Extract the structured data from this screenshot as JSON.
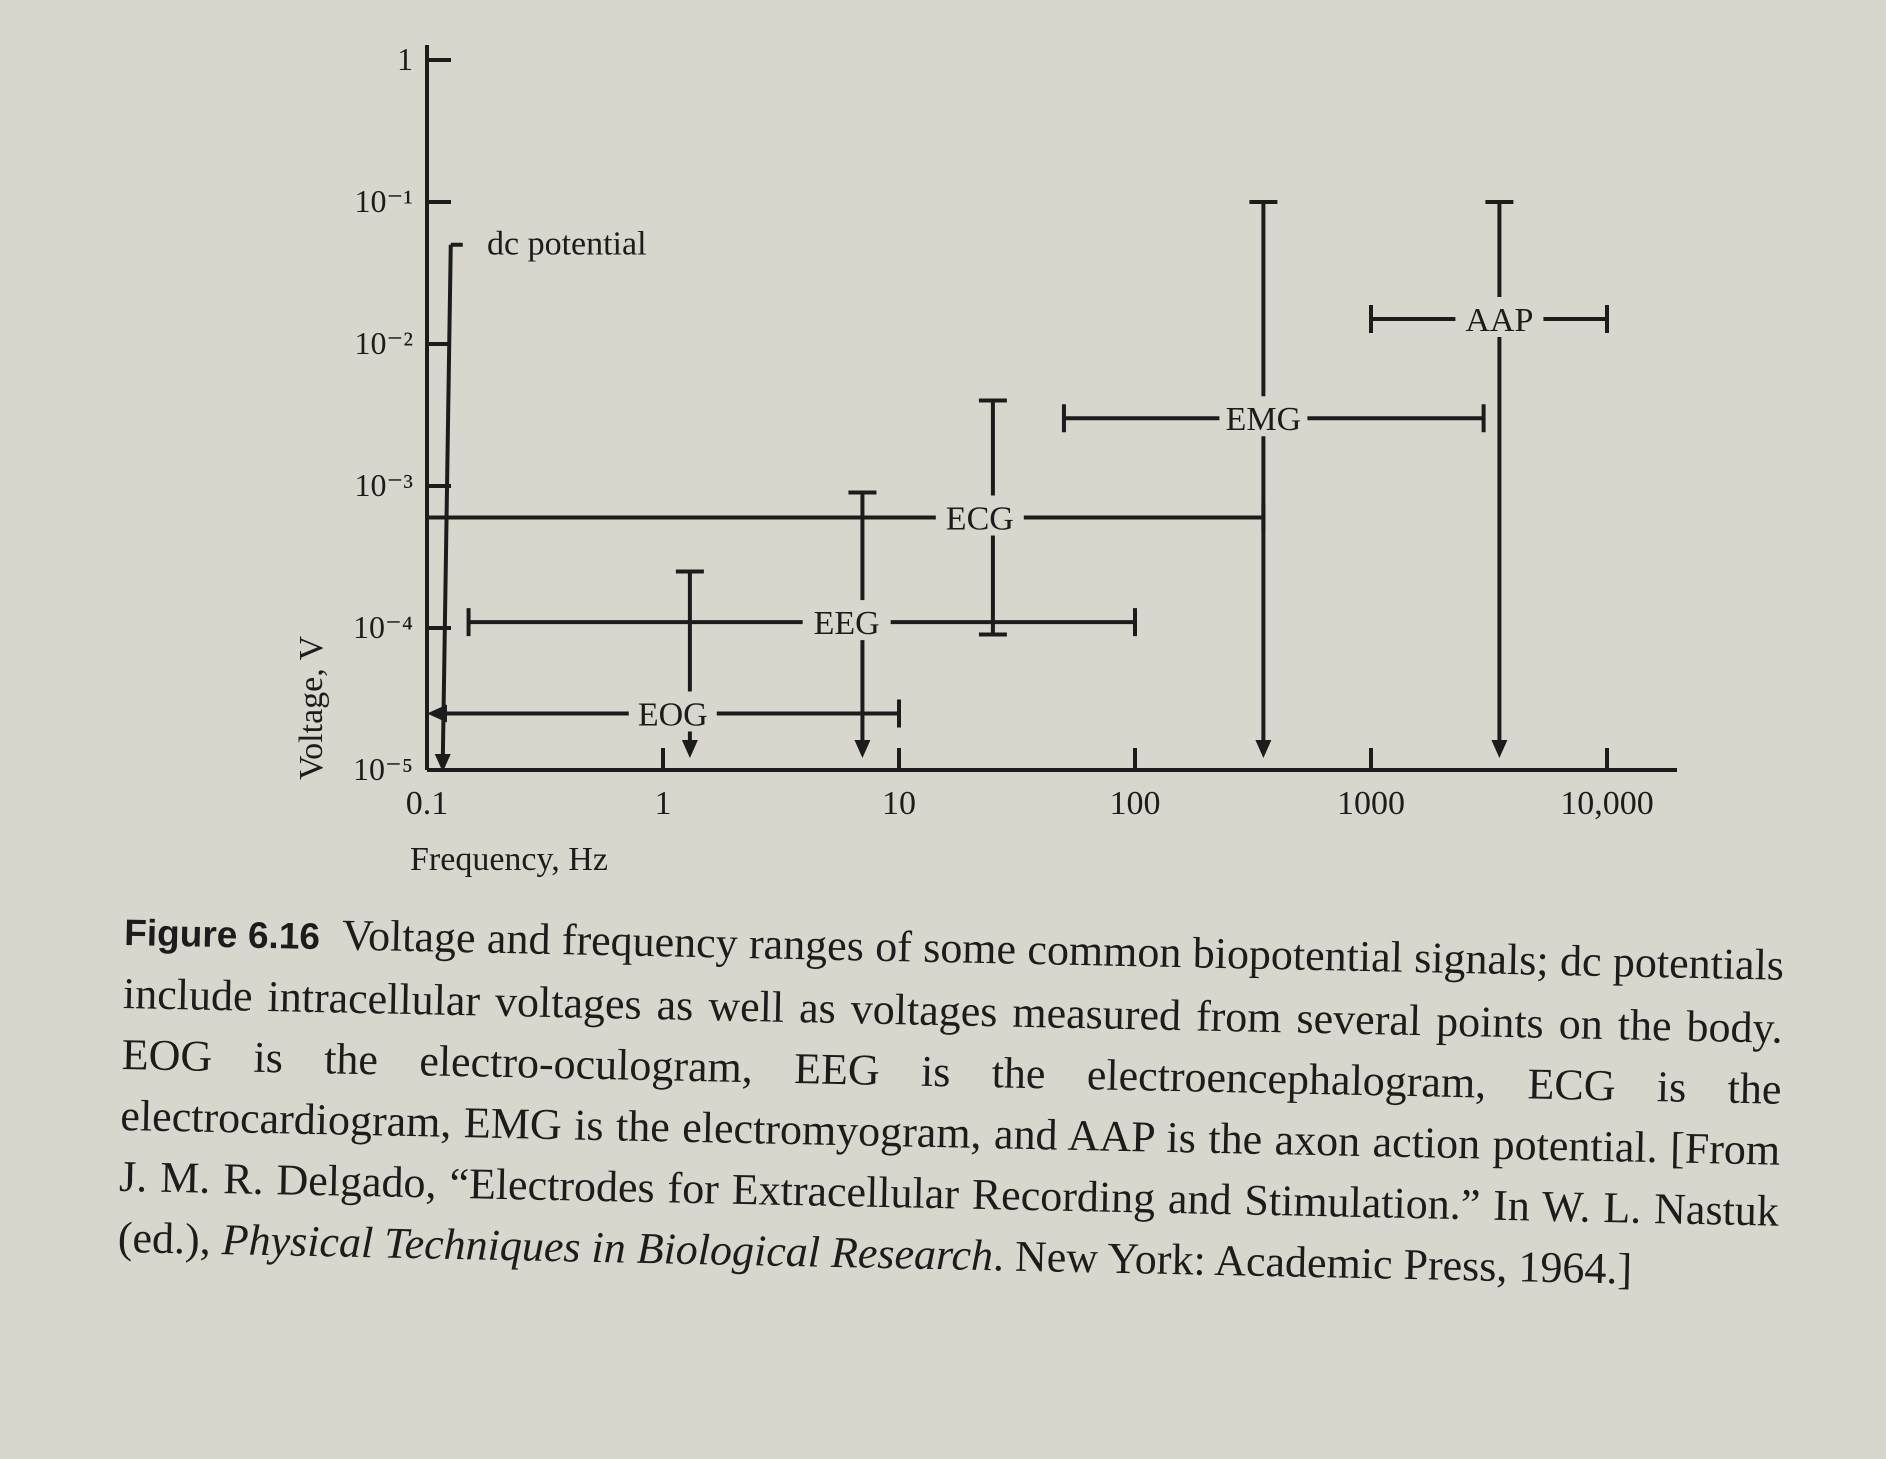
{
  "chart_data": {
    "type": "range",
    "xlabel": "Frequency, Hz",
    "ylabel": "Voltage, V",
    "x_scale": "log",
    "y_scale": "log",
    "xlim": [
      0.1,
      10000
    ],
    "ylim": [
      1e-05,
      1
    ],
    "x_ticks": [
      {
        "value": 0.1,
        "label": "0.1"
      },
      {
        "value": 1,
        "label": "1"
      },
      {
        "value": 10,
        "label": "10"
      },
      {
        "value": 100,
        "label": "100"
      },
      {
        "value": 1000,
        "label": "1000"
      },
      {
        "value": 10000,
        "label": "10,000"
      }
    ],
    "y_ticks": [
      {
        "value": 1e-05,
        "label": "10⁻⁵"
      },
      {
        "value": 0.0001,
        "label": "10⁻⁴"
      },
      {
        "value": 0.001,
        "label": "10⁻³"
      },
      {
        "value": 0.01,
        "label": "10⁻²"
      },
      {
        "value": 0.1,
        "label": "10⁻¹"
      },
      {
        "value": 1,
        "label": "1"
      }
    ],
    "series": [
      {
        "name": "dc potential",
        "freq_range": [
          0.1,
          0.1
        ],
        "voltage_range": [
          1e-05,
          0.05
        ],
        "freq_open_low": false,
        "voltage_open_low": true
      },
      {
        "name": "EOG",
        "freq_range": [
          0.1,
          10
        ],
        "voltage_range": [
          1e-05,
          0.00025
        ],
        "freq_open_low": true,
        "voltage_open_low": true
      },
      {
        "name": "EEG",
        "freq_range": [
          0.15,
          100
        ],
        "voltage_range": [
          1e-05,
          0.0009
        ],
        "freq_open_low": false,
        "voltage_open_low": true
      },
      {
        "name": "ECG",
        "freq_range": [
          0.1,
          350
        ],
        "voltage_range": [
          9e-05,
          0.004
        ],
        "freq_open_low": false,
        "voltage_open_low": false
      },
      {
        "name": "EMG",
        "freq_range": [
          50,
          3000
        ],
        "voltage_range": [
          1e-05,
          0.1
        ],
        "freq_open_low": false,
        "voltage_open_low": true
      },
      {
        "name": "AAP",
        "freq_range": [
          1000,
          10000
        ],
        "voltage_range": [
          1e-05,
          0.1
        ],
        "freq_open_low": false,
        "voltage_open_low": true
      }
    ]
  },
  "caption": {
    "label": "Figure 6.16",
    "text": "Voltage and frequency ranges of some common biopotential signals; dc potentials include intracellular voltages as well as voltages measured from several points on the body. EOG is the electro-oculogram, EEG is the electroencephalogram, ECG is the electrocardiogram, EMG is the electromyogram, and AAP is the axon action potential. [From J. M. R. Delgado, “Electrodes for Extracellular Recording and Stimulation.” In W. L. Nastuk (ed.), ",
    "book": "Physical Techniques in Biological Research",
    "tail": ". New York: Academic Press, 1964.]"
  }
}
